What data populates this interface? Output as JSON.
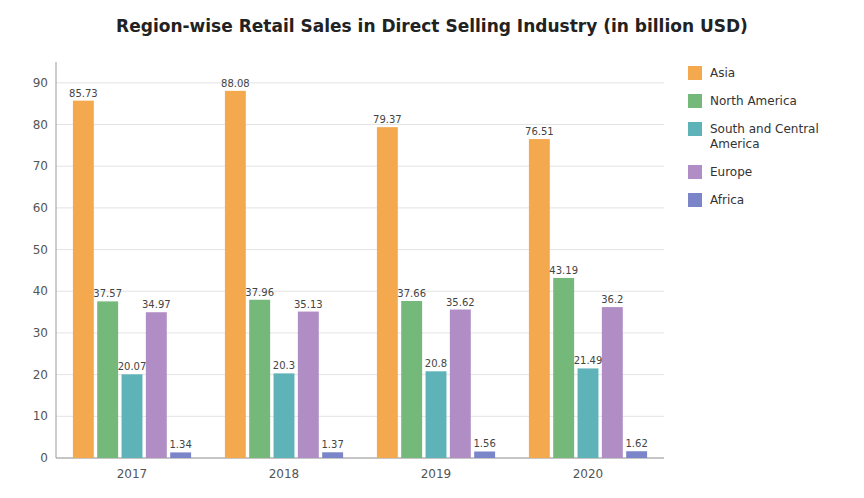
{
  "chart_data": {
    "type": "bar",
    "title": "Region-wise Retail Sales in Direct Selling Industry (in billion USD)",
    "categories": [
      "2017",
      "2018",
      "2019",
      "2020"
    ],
    "series": [
      {
        "name": "Asia",
        "color": "#F5A94E",
        "values": [
          85.73,
          88.08,
          79.37,
          76.51
        ]
      },
      {
        "name": "North America",
        "color": "#74B87A",
        "values": [
          37.57,
          37.96,
          37.66,
          43.19
        ]
      },
      {
        "name": "South and Central\nAmerica",
        "color": "#5DB3B8",
        "values": [
          20.07,
          20.3,
          20.8,
          21.49
        ]
      },
      {
        "name": "Europe",
        "color": "#B08DC4",
        "values": [
          34.97,
          35.13,
          35.62,
          36.2
        ]
      },
      {
        "name": "Africa",
        "color": "#7B85C9",
        "values": [
          1.34,
          1.37,
          1.56,
          1.62
        ]
      }
    ],
    "ylim": [
      0,
      95
    ],
    "yticks": [
      0,
      10,
      20,
      30,
      40,
      50,
      60,
      70,
      80,
      90
    ],
    "grid": true,
    "legend": "right",
    "data_labels": true
  }
}
